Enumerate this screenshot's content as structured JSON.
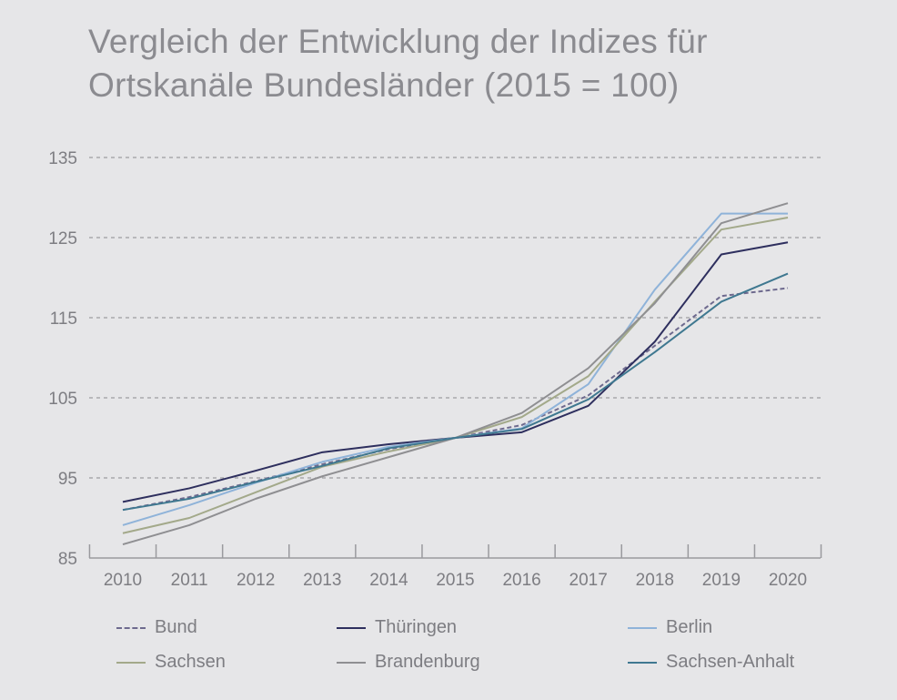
{
  "chart_data": {
    "type": "line",
    "title": "Vergleich der Entwicklung der Indizes für Ortskanäle Bundesländer (2015 = 100)",
    "x": [
      "2010",
      "2011",
      "2012",
      "2013",
      "2014",
      "2015",
      "2016",
      "2017",
      "2018",
      "2019",
      "2020"
    ],
    "ylim": [
      85,
      135
    ],
    "yticks": [
      85,
      95,
      105,
      115,
      125,
      135
    ],
    "grid": true,
    "legend_position": "bottom",
    "series": [
      {
        "name": "Bund",
        "color": "#6e6a8e",
        "dashed": true,
        "values": [
          91.0,
          92.6,
          94.6,
          96.7,
          98.6,
          100,
          101.6,
          105.3,
          111.5,
          117.7,
          118.7
        ]
      },
      {
        "name": "Thüringen",
        "color": "#2e2f5e",
        "dashed": false,
        "values": [
          92.0,
          93.7,
          95.9,
          98.2,
          99.2,
          100,
          100.7,
          104.0,
          112.0,
          122.9,
          124.4
        ]
      },
      {
        "name": "Berlin",
        "color": "#8fb3d9",
        "dashed": false,
        "values": [
          89.1,
          91.6,
          94.4,
          97.0,
          98.9,
          100,
          101.2,
          106.7,
          118.5,
          128.0,
          128.0
        ]
      },
      {
        "name": "Sachsen",
        "color": "#a3a98a",
        "dashed": false,
        "values": [
          88.1,
          90.0,
          93.2,
          96.4,
          98.3,
          100,
          102.6,
          107.7,
          117.0,
          126.0,
          127.5
        ]
      },
      {
        "name": "Brandenburg",
        "color": "#8f8f92",
        "dashed": false,
        "values": [
          86.7,
          89.1,
          92.4,
          95.2,
          97.6,
          100,
          103.1,
          108.7,
          116.8,
          126.8,
          129.3
        ]
      },
      {
        "name": "Sachsen-Anhalt",
        "color": "#3f7890",
        "dashed": false,
        "values": [
          91.0,
          92.4,
          94.5,
          96.5,
          98.7,
          100,
          101.1,
          104.8,
          110.7,
          117.0,
          120.5
        ]
      }
    ]
  }
}
